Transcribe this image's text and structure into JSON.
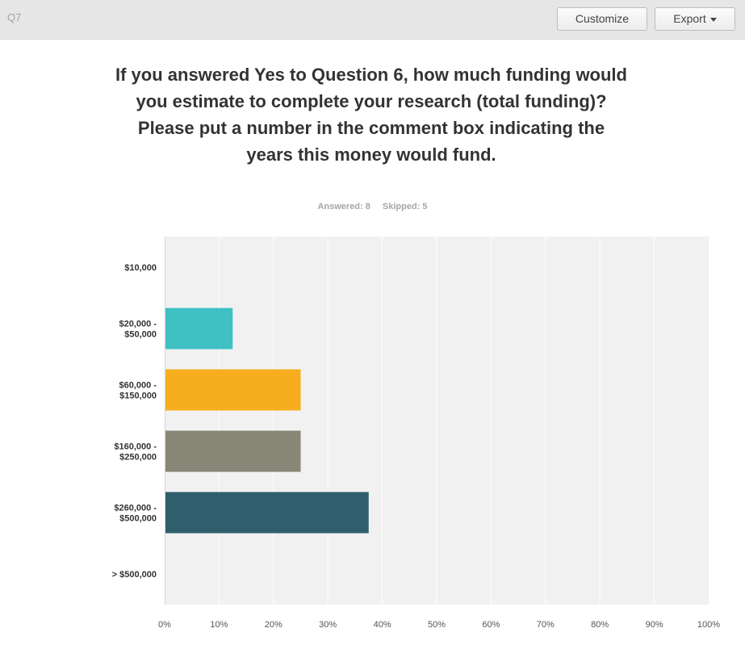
{
  "header": {
    "question_label": "Q7",
    "customize_label": "Customize",
    "export_label": "Export"
  },
  "question": {
    "title": "If you answered Yes to Question 6, how much funding would you estimate to complete your research (total funding)? Please put a number in the comment box indicating the years this money would fund.",
    "answered": "Answered: 8",
    "skipped": "Skipped: 5"
  },
  "colors": {
    "plot_bg": "#f1f1f1",
    "grid": "#ffffff"
  },
  "chart_data": {
    "type": "bar",
    "orientation": "horizontal",
    "categories": [
      [
        "$10,000"
      ],
      [
        "$20,000 -",
        "$50,000"
      ],
      [
        "$60,000 -",
        "$150,000"
      ],
      [
        "$160,000 -",
        "$250,000"
      ],
      [
        "$260,000 -",
        "$500,000"
      ],
      [
        "> $500,000"
      ]
    ],
    "values": [
      0,
      12.5,
      25,
      25,
      37.5,
      0
    ],
    "colors": [
      "#3fb4b8",
      "#3fc0c3",
      "#f6ae1f",
      "#878677",
      "#2f5f6c",
      "#888888"
    ],
    "x_ticks": [
      "0%",
      "10%",
      "20%",
      "30%",
      "40%",
      "50%",
      "60%",
      "70%",
      "80%",
      "90%",
      "100%"
    ],
    "xlim": [
      0,
      100
    ],
    "grid": true
  }
}
